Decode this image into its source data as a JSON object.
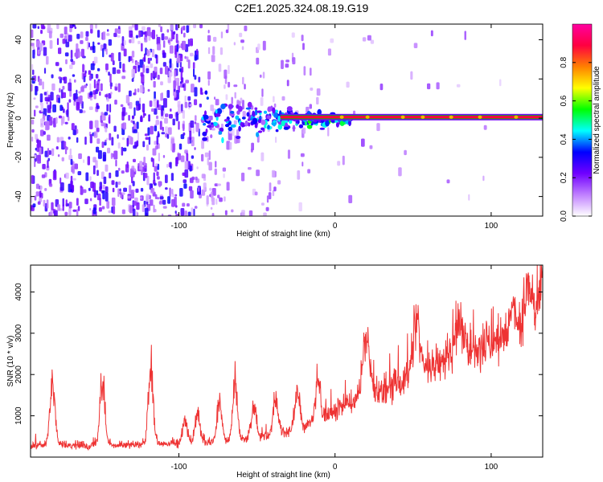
{
  "title": "C2E1.2025.324.08.19.G19",
  "chart_data": [
    {
      "type": "heatmap",
      "xlabel": "Height of straight line (km)",
      "ylabel": "Frequency (Hz)",
      "xlim": [
        -195,
        133
      ],
      "ylim": [
        -50,
        48
      ],
      "x_ticks": [
        -100,
        0,
        100
      ],
      "x_tick_labels": [
        "-100",
        "0",
        "100"
      ],
      "y_ticks": [
        -40,
        -20,
        0,
        20,
        40
      ],
      "y_tick_labels": [
        "-40",
        "-20",
        "0",
        "20",
        "40"
      ],
      "colorbar": {
        "label": "Normalized spectral amplitude",
        "range": [
          0.0,
          1.0
        ],
        "ticks": [
          0.0,
          0.2,
          0.4,
          0.6,
          0.8
        ],
        "tick_labels": [
          "0.0",
          "0.2",
          "0.4",
          "0.6",
          "0.8"
        ],
        "colormap": [
          "#ffffff",
          "#c080ff",
          "#7000ff",
          "#0000ff",
          "#00ffff",
          "#00ff00",
          "#ffff00",
          "#ff8000",
          "#ff0040",
          "#ff00a0"
        ]
      },
      "features": {
        "ridge_frequency_hz": 0.5,
        "ridge_start_km": -85,
        "ridge_end_km": 133,
        "noise_region_km": [
          -195,
          -85
        ],
        "ridge_color": "#ff0040"
      },
      "grid": false
    },
    {
      "type": "line",
      "xlabel": "Height of straight line (km)",
      "ylabel": "SNR (10 * v/v)",
      "xlim": [
        -195,
        133
      ],
      "ylim": [
        0,
        4650
      ],
      "x_ticks": [
        -100,
        0,
        100
      ],
      "x_tick_labels": [
        "-100",
        "0",
        "100"
      ],
      "y_ticks": [
        1000,
        2000,
        3000,
        4000
      ],
      "y_tick_labels": [
        "1000",
        "2000",
        "3000",
        "4000"
      ],
      "color": "#ee3333",
      "baseline_points": [
        {
          "x": -195,
          "y": 300
        },
        {
          "x": -150,
          "y": 280
        },
        {
          "x": -120,
          "y": 300
        },
        {
          "x": -90,
          "y": 330
        },
        {
          "x": -60,
          "y": 420
        },
        {
          "x": -40,
          "y": 550
        },
        {
          "x": -20,
          "y": 720
        },
        {
          "x": 0,
          "y": 1150
        },
        {
          "x": 20,
          "y": 1500
        },
        {
          "x": 40,
          "y": 1750
        },
        {
          "x": 60,
          "y": 2150
        },
        {
          "x": 80,
          "y": 2450
        },
        {
          "x": 100,
          "y": 2700
        },
        {
          "x": 120,
          "y": 3000
        },
        {
          "x": 133,
          "y": 3250
        }
      ],
      "peaks": [
        {
          "x": -181,
          "y": 2230
        },
        {
          "x": -149,
          "y": 2450
        },
        {
          "x": -118,
          "y": 2700
        },
        {
          "x": -96,
          "y": 1050
        },
        {
          "x": -88,
          "y": 1300
        },
        {
          "x": -74,
          "y": 1650
        },
        {
          "x": -64,
          "y": 2150
        },
        {
          "x": -52,
          "y": 1450
        },
        {
          "x": -38,
          "y": 1700
        },
        {
          "x": -24,
          "y": 1850
        },
        {
          "x": -11,
          "y": 2100
        },
        {
          "x": 20,
          "y": 3150
        },
        {
          "x": 52,
          "y": 3550
        },
        {
          "x": 80,
          "y": 3750
        },
        {
          "x": 114,
          "y": 3950
        },
        {
          "x": 124,
          "y": 4600
        },
        {
          "x": 131,
          "y": 4300
        }
      ],
      "grid": false
    }
  ]
}
